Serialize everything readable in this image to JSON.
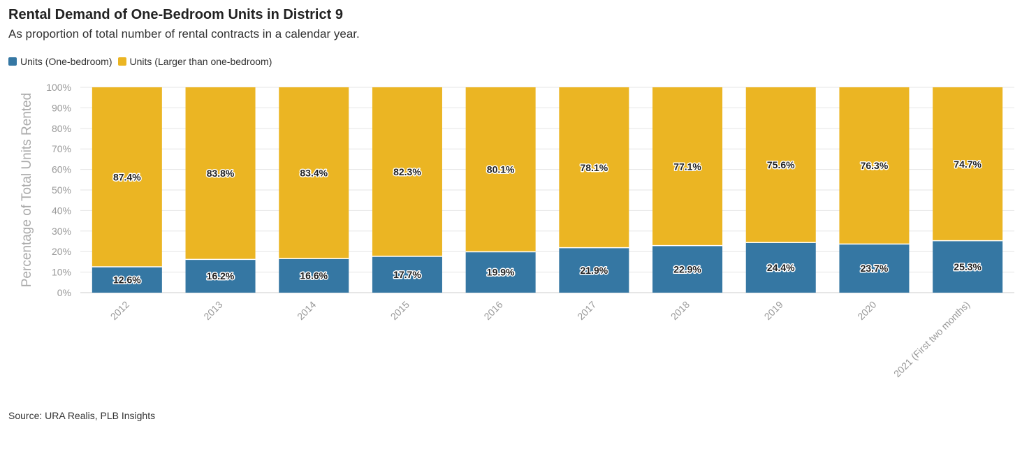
{
  "title": "Rental Demand of One-Bedroom Units in District 9",
  "subtitle": "As proportion of total number of rental contracts in a calendar year.",
  "source": "Source: URA Realis, PLB Insights",
  "colors": {
    "one_bedroom": "#3577a3",
    "larger": "#ebb523"
  },
  "chart_data": {
    "type": "bar",
    "stacked": true,
    "title": "Rental Demand of One-Bedroom Units in District 9",
    "subtitle": "As proportion of total number of rental contracts in a calendar year.",
    "xlabel": "",
    "ylabel": "Percentage of Total Units Rented",
    "ylim": [
      0,
      100
    ],
    "yticks": [
      "0%",
      "10%",
      "20%",
      "30%",
      "40%",
      "50%",
      "60%",
      "70%",
      "80%",
      "90%",
      "100%"
    ],
    "grid": true,
    "legend_position": "top-left",
    "categories": [
      "2012",
      "2013",
      "2014",
      "2015",
      "2016",
      "2017",
      "2018",
      "2019",
      "2020",
      "2021 (First two months)"
    ],
    "series": [
      {
        "name": "Units (One-bedroom)",
        "color": "#3577a3",
        "values": [
          12.6,
          16.2,
          16.6,
          17.7,
          19.9,
          21.9,
          22.9,
          24.4,
          23.7,
          25.3
        ],
        "labels": [
          "12.6%",
          "16.2%",
          "16.6%",
          "17.7%",
          "19.9%",
          "21.9%",
          "22.9%",
          "24.4%",
          "23.7%",
          "25.3%"
        ]
      },
      {
        "name": "Units (Larger than one-bedroom)",
        "color": "#ebb523",
        "values": [
          87.4,
          83.8,
          83.4,
          82.3,
          80.1,
          78.1,
          77.1,
          75.6,
          76.3,
          74.7
        ],
        "labels": [
          "87.4%",
          "83.8%",
          "83.4%",
          "82.3%",
          "80.1%",
          "78.1%",
          "77.1%",
          "75.6%",
          "76.3%",
          "74.7%"
        ]
      }
    ]
  }
}
